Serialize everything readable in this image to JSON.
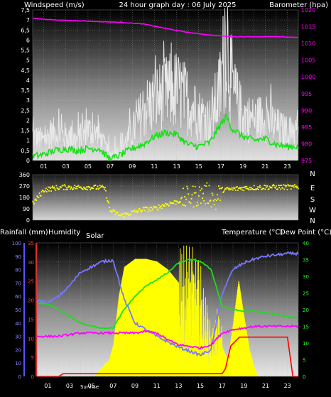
{
  "header": {
    "wind_label": "Windspeed (m/s)",
    "title": "24 hour graph day : 06 July 2025",
    "baro_label": "Barometer (hpa)"
  },
  "labels": {
    "rainfall": "Rainfall (mm)",
    "humidity": "Humidity",
    "solar": "Solar",
    "temperature": "Temperature (°C)",
    "dewpoint": "Dew Point (°C)",
    "sunrise": "Sunrise"
  },
  "colors": {
    "wind_gust": "#e8e8e8",
    "wind_avg": "#18e018",
    "barometer": "#ff00ff",
    "direction": "#ffff00",
    "humidity": "#7777ff",
    "temperature": "#18e018",
    "dewpoint": "#ff00ff",
    "rain": "#ff0000",
    "solar": "#ffff00",
    "hum_axis": "#5555ff",
    "rain_axis": "#ff2222"
  },
  "chart_data": [
    {
      "type": "line",
      "name": "wind-barometer",
      "title": "24 hour graph day : 06 July 2025",
      "ylabel": "Windspeed (m/s)",
      "y2label": "Barometer (hpa)",
      "xlim": [
        0,
        24
      ],
      "ylim": [
        0,
        7.5
      ],
      "y2lim": [
        975,
        1020
      ],
      "x_ticks": [
        "01",
        "03",
        "05",
        "07",
        "09",
        "11",
        "13",
        "15",
        "17",
        "19",
        "21",
        "23"
      ],
      "y_ticks": [
        "0",
        "0,5",
        "1",
        "1,5",
        "2",
        "2,5",
        "3",
        "3,5",
        "4",
        "4,5",
        "5",
        "5,5",
        "6",
        "6,5",
        "7",
        "7,5"
      ],
      "y2_ticks": [
        "975",
        "980",
        "985",
        "990",
        "995",
        "1000",
        "1005",
        "1010",
        "1015",
        "1020"
      ],
      "series": [
        {
          "name": "gust",
          "x": [
            0,
            1,
            2,
            3,
            4,
            5,
            6,
            7,
            8,
            9,
            10,
            11,
            12,
            13,
            14,
            15,
            16,
            17,
            17.5,
            18,
            19,
            20,
            21,
            22,
            23,
            24
          ],
          "values": [
            1.2,
            1.0,
            1.4,
            1.2,
            1.0,
            1.5,
            1.2,
            0.3,
            0.6,
            1.4,
            2.5,
            3.0,
            3.3,
            3.5,
            3.0,
            2.3,
            2.0,
            3.6,
            6.5,
            3.5,
            2.2,
            2.0,
            2.2,
            1.7,
            1.4,
            1.5
          ]
        },
        {
          "name": "average",
          "x": [
            0,
            1,
            2,
            3,
            4,
            5,
            6,
            7,
            8,
            9,
            10,
            11,
            12,
            13,
            14,
            15,
            16,
            17,
            17.5,
            18,
            19,
            20,
            21,
            22,
            23,
            24
          ],
          "values": [
            0.2,
            0.3,
            0.5,
            0.6,
            0.5,
            0.6,
            0.6,
            0.05,
            0.3,
            0.6,
            0.8,
            1.2,
            1.4,
            1.3,
            0.8,
            0.7,
            0.9,
            1.8,
            2.2,
            1.6,
            1.2,
            1.0,
            1.1,
            0.8,
            0.7,
            0.7
          ]
        },
        {
          "name": "barometer",
          "x": [
            0,
            2,
            4,
            6,
            8,
            10,
            12,
            14,
            16,
            18,
            20,
            22,
            24
          ],
          "values": [
            1017.5,
            1017,
            1016.8,
            1016.5,
            1016.3,
            1015.8,
            1014.5,
            1013.3,
            1012.5,
            1012.0,
            1012.0,
            1012.0,
            1011.8
          ]
        }
      ]
    },
    {
      "type": "scatter",
      "name": "wind-direction",
      "xlim": [
        0,
        24
      ],
      "ylim": [
        0,
        360
      ],
      "y_ticks": [
        "0",
        "90",
        "180",
        "270",
        "360"
      ],
      "y_right_labels": [
        "N",
        "W",
        "S",
        "E",
        "N"
      ],
      "series": [
        {
          "name": "direction",
          "x": [
            0,
            1,
            2,
            3,
            4,
            5,
            6,
            6.5,
            7,
            8,
            9,
            10,
            11,
            12,
            13,
            14,
            15,
            16,
            16.5,
            17,
            18,
            19,
            20,
            21,
            22,
            23,
            24
          ],
          "values": [
            130,
            240,
            255,
            262,
            260,
            262,
            258,
            255,
            75,
            35,
            60,
            85,
            90,
            125,
            145,
            180,
            200,
            210,
            140,
            240,
            245,
            255,
            258,
            262,
            262,
            262,
            260
          ]
        }
      ]
    },
    {
      "type": "area",
      "name": "temperature-humidity-solar",
      "xlim": [
        0,
        24
      ],
      "ylim_humidity": [
        0,
        100
      ],
      "ylim_rain": [
        0,
        35
      ],
      "ylim_temp": [
        0,
        40
      ],
      "x_ticks": [
        "01",
        "03",
        "05",
        "07",
        "09",
        "11",
        "13",
        "15",
        "17",
        "19",
        "21",
        "23"
      ],
      "hum_ticks": [
        "0",
        "10",
        "20",
        "30",
        "40",
        "50",
        "60",
        "70",
        "80",
        "90",
        "100"
      ],
      "rain_ticks": [
        "0",
        "5",
        "10",
        "15",
        "20",
        "25",
        "30",
        "35"
      ],
      "temp_ticks": [
        "0",
        "5",
        "10",
        "15",
        "20",
        "25",
        "30",
        "35",
        "40"
      ],
      "series": [
        {
          "name": "humidity",
          "x": [
            0,
            1,
            2,
            3,
            4,
            5,
            6,
            7,
            8,
            9,
            10,
            11,
            12,
            13,
            14,
            15,
            16,
            17,
            18,
            19,
            20,
            21,
            22,
            23,
            24
          ],
          "values": [
            57,
            55,
            60,
            68,
            78,
            82,
            86,
            87,
            58,
            40,
            35,
            30,
            26,
            22,
            19,
            16,
            20,
            62,
            80,
            85,
            88,
            90,
            91,
            92,
            92
          ]
        },
        {
          "name": "temperature",
          "x": [
            0,
            1,
            2,
            3,
            4,
            5,
            6,
            7,
            8,
            9,
            10,
            11,
            12,
            13,
            14,
            15,
            16,
            17,
            18,
            19,
            20,
            21,
            22,
            23,
            24
          ],
          "values": [
            22,
            21.5,
            20,
            18,
            16,
            15,
            14.5,
            14.5,
            20,
            24,
            27,
            29,
            31,
            34,
            35,
            34.5,
            32,
            21,
            20,
            19.5,
            19.5,
            19,
            18.5,
            18,
            17.5
          ]
        },
        {
          "name": "dewpoint",
          "x": [
            0,
            1,
            2,
            3,
            4,
            5,
            6,
            7,
            8,
            9,
            10,
            11,
            12,
            13,
            14,
            15,
            16,
            17,
            18,
            19,
            20,
            21,
            22,
            23,
            24
          ],
          "values": [
            12,
            12,
            12,
            12.5,
            13,
            13,
            13,
            13,
            13,
            13,
            13.5,
            13,
            11,
            9.5,
            9,
            8.5,
            9.5,
            13,
            14,
            14.5,
            15,
            15,
            15,
            15,
            15
          ]
        },
        {
          "name": "rain",
          "x": [
            0,
            2,
            2.4,
            3,
            5,
            7,
            9,
            11,
            13,
            15,
            17,
            17.3,
            17.8,
            18.6,
            19,
            21,
            23,
            23.5,
            24
          ],
          "values": [
            0,
            0,
            0.7,
            0.7,
            0.7,
            0.7,
            0.7,
            0.7,
            0.7,
            0.7,
            0.7,
            2.0,
            8.0,
            10.3,
            10.3,
            10.3,
            10.3,
            0,
            0
          ]
        },
        {
          "name": "solar",
          "x": [
            5.3,
            5.8,
            6.2,
            6.6,
            7,
            7.5,
            8,
            9,
            10,
            11,
            12,
            13,
            14,
            15,
            15.5,
            16,
            16.5,
            17,
            17.5,
            18,
            18.5,
            19,
            19.5,
            20,
            20.3
          ],
          "values": [
            0,
            5,
            9,
            12,
            24,
            60,
            82,
            88,
            88,
            86,
            80,
            70,
            60,
            50,
            35,
            20,
            30,
            22,
            12,
            40,
            72,
            45,
            20,
            5,
            0
          ]
        }
      ]
    }
  ]
}
